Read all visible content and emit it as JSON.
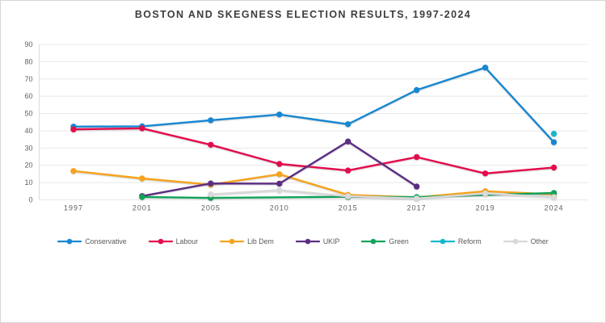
{
  "title": "BOSTON AND SKEGNESS ELECTION RESULTS, 1997-2024",
  "chart_data": {
    "type": "line",
    "title": "BOSTON AND SKEGNESS ELECTION RESULTS, 1997-2024",
    "xlabel": "",
    "ylabel": "",
    "categories": [
      "1997",
      "2001",
      "2005",
      "2010",
      "2015",
      "2017",
      "2019",
      "2024"
    ],
    "ylim": [
      0,
      90
    ],
    "y_ticks": [
      0,
      10,
      20,
      30,
      40,
      50,
      60,
      70,
      80,
      90
    ],
    "grid": true,
    "legend_position": "bottom",
    "series": [
      {
        "name": "Conservative",
        "color": "#1787d2",
        "values": [
          42.4,
          42.6,
          46.1,
          49.4,
          43.8,
          63.6,
          76.6,
          33.4
        ]
      },
      {
        "name": "Labour",
        "color": "#e40b4c",
        "values": [
          40.8,
          41.4,
          31.9,
          20.8,
          17.0,
          24.8,
          15.3,
          18.7
        ]
      },
      {
        "name": "Lib Dem",
        "color": "#f5a31e",
        "values": [
          16.7,
          12.4,
          8.8,
          14.8,
          2.9,
          1.4,
          5.0,
          3.2
        ]
      },
      {
        "name": "UKIP",
        "color": "#5c2d82",
        "values": [
          null,
          2.2,
          9.5,
          9.4,
          33.8,
          7.7,
          null,
          null
        ]
      },
      {
        "name": "Green",
        "color": "#10a35a",
        "values": [
          null,
          1.7,
          1.1,
          null,
          1.8,
          1.6,
          null,
          4.0
        ]
      },
      {
        "name": "Reform",
        "color": "#16b8cc",
        "values": [
          null,
          null,
          null,
          null,
          null,
          null,
          null,
          38.3
        ]
      },
      {
        "name": "Other",
        "color": "#d9d9d9",
        "values": [
          null,
          null,
          3.2,
          5.6,
          2.1,
          0.8,
          3.7,
          1.6
        ]
      }
    ],
    "style": {
      "grid_color": "#e8e8e8",
      "axis_border_color": "#dcdcdc",
      "tick_text_color": "#5f5f5f",
      "title_color": "#3d3d3d",
      "outer_border_color": "#d6d6d6"
    }
  }
}
